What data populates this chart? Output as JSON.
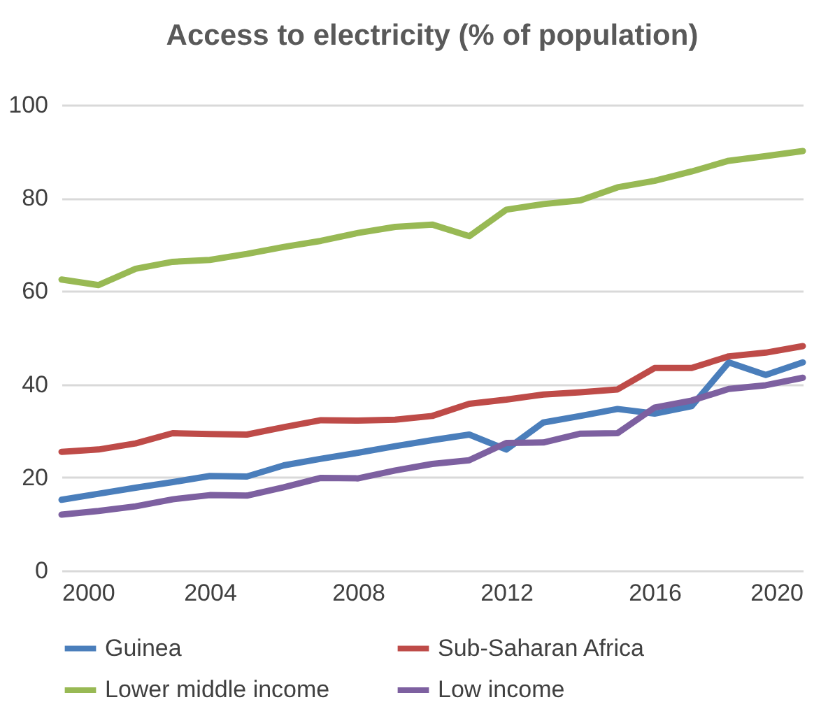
{
  "chart_data": {
    "type": "line",
    "title": "Access to electricity (% of population)",
    "x": [
      2000,
      2001,
      2002,
      2003,
      2004,
      2005,
      2006,
      2007,
      2008,
      2009,
      2010,
      2011,
      2012,
      2013,
      2014,
      2015,
      2016,
      2017,
      2018,
      2019,
      2020
    ],
    "series": [
      {
        "name": "Guinea",
        "color": "#4a7ebb",
        "values": [
          15.2,
          16.5,
          17.8,
          19,
          20.3,
          20.2,
          22.6,
          24,
          25.3,
          26.7,
          28,
          29.2,
          26,
          31.8,
          33.2,
          34.7,
          33.7,
          35.3,
          44.7,
          42,
          44.7
        ]
      },
      {
        "name": "Sub-Saharan Africa",
        "color": "#be4b48",
        "values": [
          25.5,
          26,
          27.3,
          29.5,
          29.3,
          29.2,
          30.8,
          32.3,
          32.2,
          32.4,
          33.2,
          35.8,
          36.7,
          37.8,
          38.3,
          38.9,
          43.5,
          43.5,
          46,
          46.8,
          48.2
        ]
      },
      {
        "name": "Lower middle income",
        "color": "#98b954",
        "values": [
          62.5,
          61.3,
          64.8,
          66.3,
          66.7,
          68,
          69.5,
          70.8,
          72.5,
          73.8,
          74.3,
          71.8,
          77.5,
          78.7,
          79.5,
          82.3,
          83.7,
          85.7,
          88,
          89,
          90.1
        ]
      },
      {
        "name": "Low income",
        "color": "#7d60a0",
        "values": [
          12,
          12.8,
          13.8,
          15.3,
          16.2,
          16.1,
          17.9,
          19.9,
          19.8,
          21.5,
          22.9,
          23.7,
          27.4,
          27.5,
          29.4,
          29.5,
          35,
          36.5,
          39,
          39.8,
          41.4
        ]
      }
    ],
    "xlim": [
      2000,
      2020
    ],
    "xticks": [
      2000,
      2004,
      2008,
      2012,
      2016,
      2020
    ],
    "ylim": [
      0,
      100
    ],
    "yticks": [
      0,
      20,
      40,
      60,
      80,
      100
    ],
    "grid": "y",
    "legend": "bottom",
    "marker": "none",
    "line_style": "solid"
  }
}
